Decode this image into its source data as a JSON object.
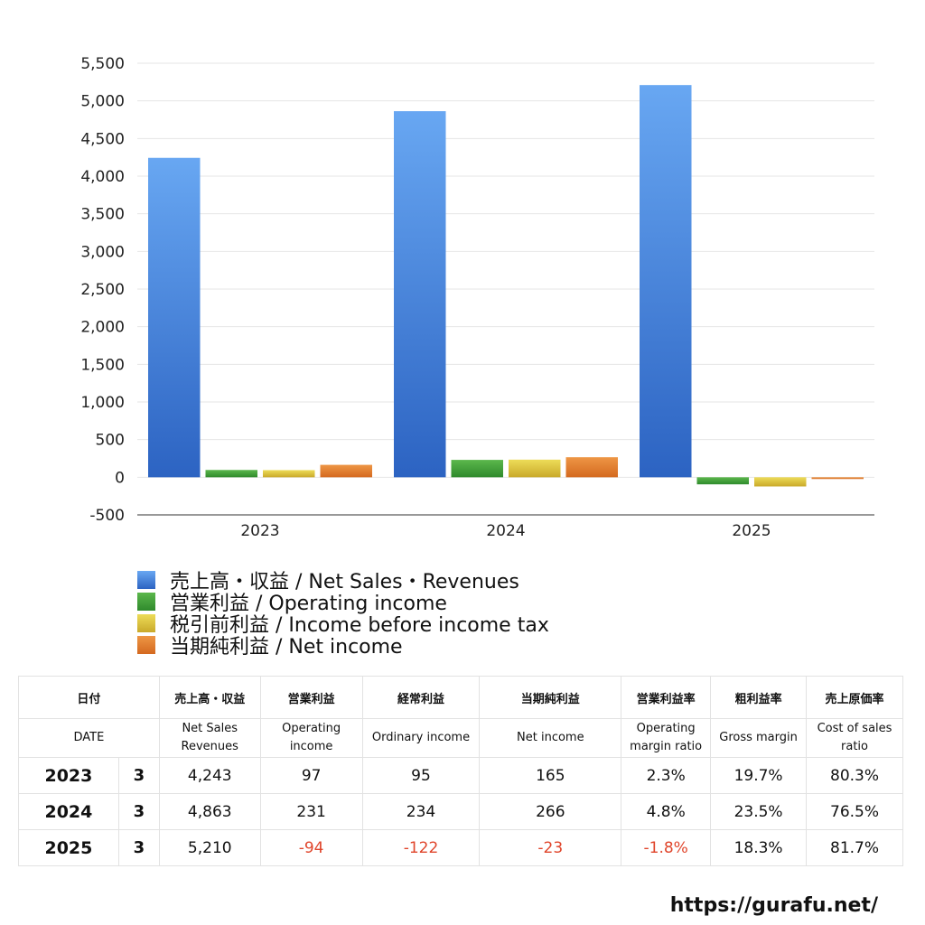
{
  "chart_data": {
    "type": "bar",
    "categories": [
      "2023",
      "2024",
      "2025"
    ],
    "ylim": [
      -500,
      5500
    ],
    "yticks": [
      -500,
      0,
      500,
      1000,
      1500,
      2000,
      2500,
      3000,
      3500,
      4000,
      4500,
      5000,
      5500
    ],
    "ytick_labels": [
      "-500",
      "0",
      "500",
      "1,000",
      "1,500",
      "2,000",
      "2,500",
      "3,000",
      "3,500",
      "4,000",
      "4,500",
      "5,000",
      "5,500"
    ],
    "grid": true,
    "legend_placement": "bottom-left",
    "series": [
      {
        "name": "売上高・収益 / Net Sales・Revenues",
        "values": [
          4243,
          4863,
          5210
        ],
        "color_top": "#68a7f2",
        "color_bottom": "#2c63c2"
      },
      {
        "name": "営業利益 / Operating income",
        "values": [
          97,
          231,
          -94
        ],
        "color_top": "#5bb74c",
        "color_bottom": "#2f8a2c"
      },
      {
        "name": "税引前利益 / Income before income tax",
        "values": [
          95,
          234,
          -122
        ],
        "color_top": "#eddc58",
        "color_bottom": "#c9a92a"
      },
      {
        "name": "当期純利益 / Net income",
        "values": [
          165,
          266,
          -23
        ],
        "color_top": "#ee9645",
        "color_bottom": "#d4691f"
      }
    ]
  },
  "table": {
    "headers_ja": [
      "日付",
      "売上高・収益",
      "営業利益",
      "経常利益",
      "当期純利益",
      "営業利益率",
      "粗利益率",
      "売上原価率"
    ],
    "headers_en": [
      "DATE",
      "Net Sales\nRevenues",
      "Operating\nincome",
      "Ordinary income",
      "Net income",
      "Operating\nmargin ratio",
      "Gross margin",
      "Cost of sales\nratio"
    ],
    "rows": [
      {
        "year": "2023",
        "month": "3",
        "sales": "4,243",
        "op": "97",
        "ord": "95",
        "net": "165",
        "op_margin": "2.3%",
        "gross": "19.7%",
        "cost": "80.3%"
      },
      {
        "year": "2024",
        "month": "3",
        "sales": "4,863",
        "op": "231",
        "ord": "234",
        "net": "266",
        "op_margin": "4.8%",
        "gross": "23.5%",
        "cost": "76.5%"
      },
      {
        "year": "2025",
        "month": "3",
        "sales": "5,210",
        "op": "-94",
        "ord": "-122",
        "net": "-23",
        "op_margin": "-1.8%",
        "gross": "18.3%",
        "cost": "81.7%"
      }
    ]
  },
  "footer": {
    "url": "https://gurafu.net/"
  },
  "colors": {
    "negative": "#e0452b",
    "grid": "#e6e6e6",
    "axis": "#333333"
  }
}
